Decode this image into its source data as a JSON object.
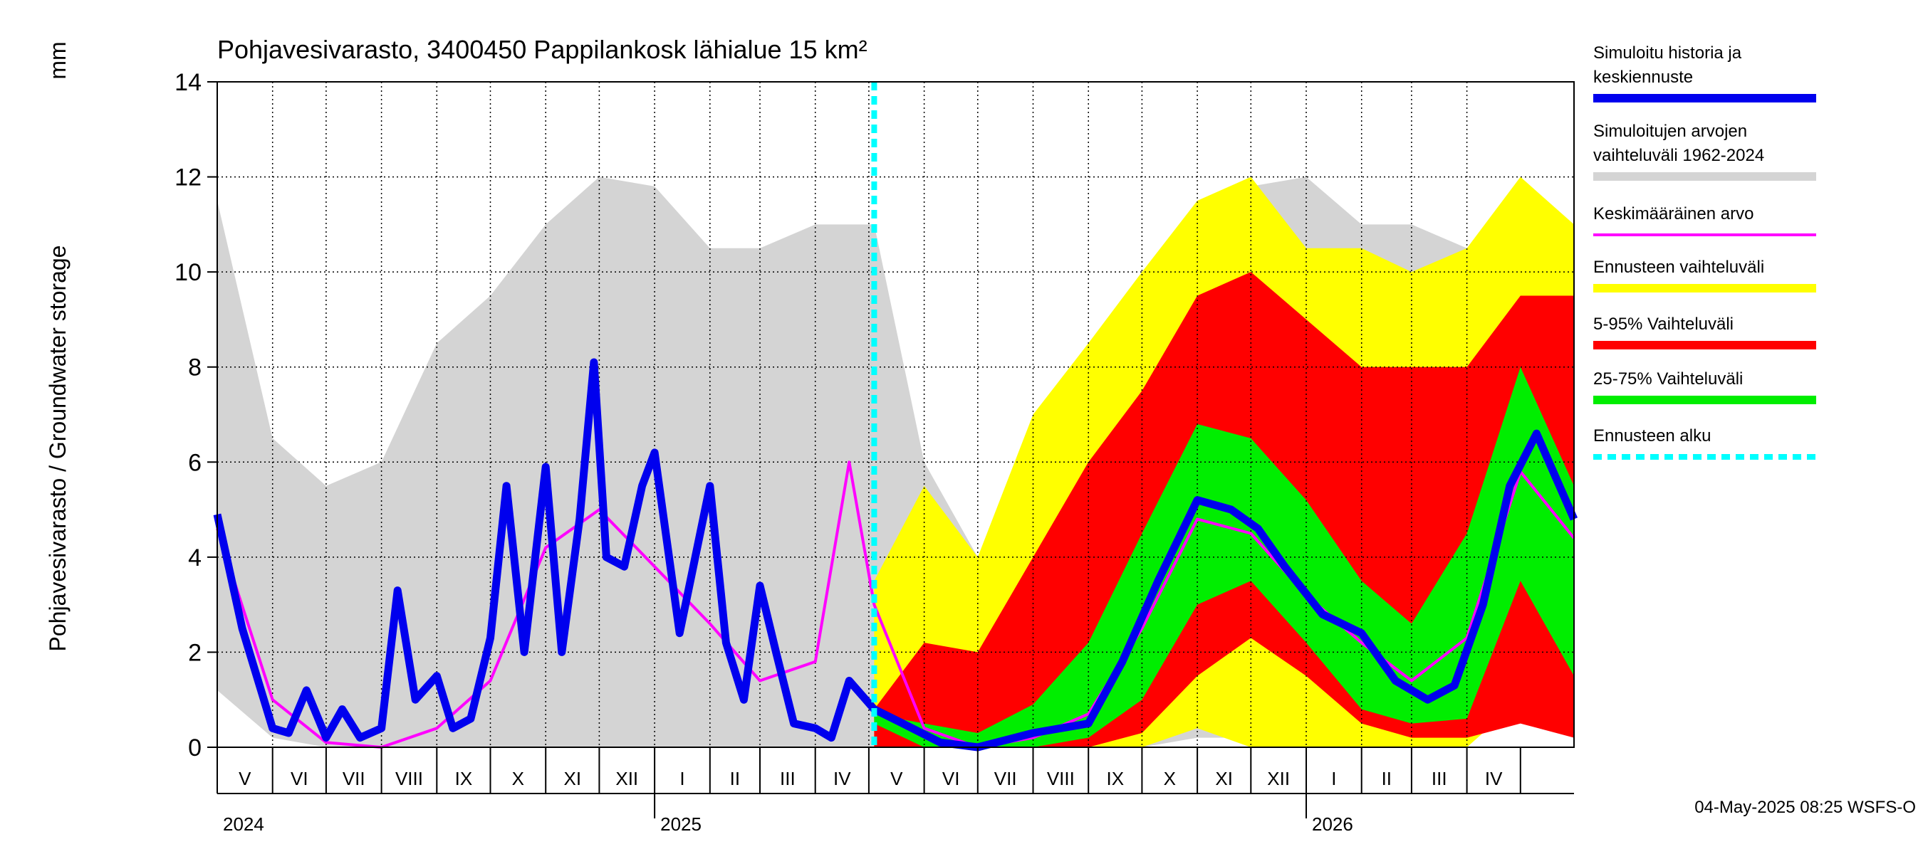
{
  "chart_data": {
    "type": "area",
    "title": "Pohjavesivarasto, 3400450 Pappilankosk lähialue 15 km²",
    "ylabel": "Pohjavesivarasto / Groundwater storage",
    "yunit": "mm",
    "ylim": [
      0,
      14
    ],
    "yticks": [
      0,
      2,
      4,
      6,
      8,
      10,
      12,
      14
    ],
    "xlim": [
      "2024-05-01",
      "2026-05-31"
    ],
    "forecast_start": "2025-05-04",
    "months": [
      "V",
      "VI",
      "VII",
      "VIII",
      "IX",
      "X",
      "XI",
      "XII",
      "I",
      "II",
      "III",
      "IV",
      "V",
      "VI",
      "VII",
      "VIII",
      "IX",
      "X",
      "XI",
      "XII",
      "I",
      "II",
      "III",
      "IV"
    ],
    "years": [
      "2024",
      "2025",
      "2026"
    ],
    "grid": true,
    "legend_position": "right",
    "colors": {
      "history": "#0000ee",
      "range": "#d4d4d4",
      "mean": "#ff00ff",
      "forecast_range": "#ffff00",
      "p5_95": "#ff0000",
      "p25_75": "#00ee00",
      "forecast_start": "#00ffff"
    },
    "series": [
      {
        "name": "Simuloitu historia ja keskiennuste",
        "key": "history",
        "x": [
          "2024-05-01",
          "2024-05-15",
          "2024-06-01",
          "2024-06-10",
          "2024-06-20",
          "2024-07-01",
          "2024-07-10",
          "2024-07-20",
          "2024-08-01",
          "2024-08-10",
          "2024-08-20",
          "2024-09-01",
          "2024-09-10",
          "2024-09-20",
          "2024-10-01",
          "2024-10-10",
          "2024-10-20",
          "2024-11-01",
          "2024-11-10",
          "2024-11-20",
          "2024-11-28",
          "2024-12-05",
          "2024-12-15",
          "2024-12-25",
          "2025-01-01",
          "2025-01-15",
          "2025-02-01",
          "2025-02-10",
          "2025-02-20",
          "2025-03-01",
          "2025-03-10",
          "2025-03-20",
          "2025-04-01",
          "2025-04-10",
          "2025-04-20",
          "2025-05-04",
          "2025-05-20",
          "2025-06-10",
          "2025-07-01",
          "2025-08-01",
          "2025-09-01",
          "2025-09-20",
          "2025-10-10",
          "2025-11-01",
          "2025-11-20",
          "2025-12-05",
          "2025-12-20",
          "2026-01-10",
          "2026-02-01",
          "2026-02-20",
          "2026-03-10",
          "2026-03-25",
          "2026-04-10",
          "2026-04-25",
          "2026-05-10",
          "2026-05-31"
        ],
        "values": [
          4.9,
          2.5,
          0.4,
          0.3,
          1.2,
          0.2,
          0.8,
          0.2,
          0.4,
          3.3,
          1.0,
          1.5,
          0.4,
          0.6,
          2.3,
          5.5,
          2.0,
          5.9,
          2.0,
          4.8,
          8.1,
          4.0,
          3.8,
          5.5,
          6.2,
          2.4,
          5.5,
          2.2,
          1.0,
          3.4,
          2.0,
          0.5,
          0.4,
          0.2,
          1.4,
          0.8,
          0.5,
          0.1,
          0.0,
          0.3,
          0.5,
          1.8,
          3.5,
          5.2,
          5.0,
          4.6,
          3.8,
          2.8,
          2.4,
          1.4,
          1.0,
          1.3,
          3.0,
          5.5,
          6.6,
          4.8
        ]
      },
      {
        "name": "Simuloitujen arvojen vaihteluväli 1962-2024",
        "key": "range",
        "x": [
          "2024-05-01",
          "2024-06-01",
          "2024-07-01",
          "2024-08-01",
          "2024-09-01",
          "2024-10-01",
          "2024-11-01",
          "2024-12-01",
          "2025-01-01",
          "2025-02-01",
          "2025-03-01",
          "2025-04-01",
          "2025-05-04",
          "2025-06-01",
          "2025-07-01",
          "2025-08-01",
          "2025-09-01",
          "2025-10-01",
          "2025-11-01",
          "2025-12-01",
          "2026-01-01",
          "2026-02-01",
          "2026-03-01",
          "2026-04-01",
          "2026-05-01",
          "2026-05-31"
        ],
        "upper": [
          11.5,
          6.5,
          5.5,
          6.0,
          8.5,
          9.5,
          11.0,
          12.0,
          11.8,
          10.5,
          10.5,
          11.0,
          11.0,
          6.0,
          4.0,
          6.0,
          7.5,
          9.0,
          10.5,
          11.8,
          12.0,
          11.0,
          11.0,
          10.5,
          11.2,
          11.0
        ],
        "lower": [
          1.2,
          0.2,
          0.0,
          0.0,
          0.0,
          0.0,
          0.0,
          0.0,
          0.0,
          0.0,
          0.0,
          0.0,
          0.0,
          0.0,
          0.0,
          0.0,
          0.0,
          0.0,
          0.2,
          0.2,
          0.2,
          0.1,
          0.1,
          0.1,
          1.0,
          1.5
        ]
      },
      {
        "name": "Keskimääräinen arvo",
        "key": "mean",
        "x": [
          "2024-05-01",
          "2024-06-01",
          "2024-07-01",
          "2024-08-01",
          "2024-09-01",
          "2024-10-01",
          "2024-11-01",
          "2024-12-01",
          "2025-01-01",
          "2025-02-01",
          "2025-03-01",
          "2025-04-01",
          "2025-04-20",
          "2025-05-04",
          "2025-06-01",
          "2025-07-01",
          "2025-08-01",
          "2025-09-01",
          "2025-10-01",
          "2025-11-01",
          "2025-12-01",
          "2026-01-01",
          "2026-02-01",
          "2026-03-01",
          "2026-04-01",
          "2026-05-01",
          "2026-05-31"
        ],
        "values": [
          4.6,
          1.0,
          0.1,
          0.0,
          0.4,
          1.4,
          4.2,
          5.0,
          3.8,
          2.6,
          1.4,
          1.8,
          6.0,
          3.0,
          0.4,
          0.0,
          0.2,
          0.7,
          2.5,
          4.8,
          4.5,
          3.2,
          2.2,
          1.4,
          2.3,
          5.8,
          4.4
        ]
      },
      {
        "name": "Ennusteen vaihteluväli",
        "key": "forecast_range",
        "x": [
          "2025-05-04",
          "2025-06-01",
          "2025-07-01",
          "2025-08-01",
          "2025-09-01",
          "2025-10-01",
          "2025-11-01",
          "2025-12-01",
          "2026-01-01",
          "2026-02-01",
          "2026-03-01",
          "2026-04-01",
          "2026-05-01",
          "2026-05-31"
        ],
        "upper": [
          3.5,
          5.5,
          4.0,
          7.0,
          8.5,
          10.0,
          11.5,
          12.0,
          10.5,
          10.5,
          10.0,
          10.5,
          12.0,
          11.0
        ],
        "lower": [
          0.0,
          0.0,
          0.0,
          0.0,
          0.0,
          0.0,
          0.4,
          0.0,
          0.0,
          0.0,
          0.0,
          0.0,
          1.0,
          0.5
        ]
      },
      {
        "name": "5-95% Vaihteluväli",
        "key": "p5_95",
        "x": [
          "2025-05-04",
          "2025-06-01",
          "2025-07-01",
          "2025-08-01",
          "2025-09-01",
          "2025-10-01",
          "2025-11-01",
          "2025-12-01",
          "2026-01-01",
          "2026-02-01",
          "2026-03-01",
          "2026-04-01",
          "2026-05-01",
          "2026-05-31"
        ],
        "upper": [
          0.8,
          2.2,
          2.0,
          4.0,
          6.0,
          7.5,
          9.5,
          10.0,
          9.0,
          8.0,
          8.0,
          8.0,
          9.5,
          9.5
        ],
        "lower": [
          0.0,
          0.0,
          0.0,
          0.0,
          0.0,
          0.3,
          1.5,
          2.3,
          1.5,
          0.5,
          0.2,
          0.2,
          0.5,
          0.2
        ]
      },
      {
        "name": "25-75% Vaihteluväli",
        "key": "p25_75",
        "x": [
          "2025-05-04",
          "2025-06-01",
          "2025-07-01",
          "2025-08-01",
          "2025-09-01",
          "2025-10-01",
          "2025-11-01",
          "2025-12-01",
          "2026-01-01",
          "2026-02-01",
          "2026-03-01",
          "2026-04-01",
          "2026-05-01",
          "2026-05-31"
        ],
        "upper": [
          0.7,
          0.5,
          0.3,
          0.9,
          2.2,
          4.5,
          6.8,
          6.5,
          5.2,
          3.5,
          2.6,
          4.5,
          8.0,
          5.5
        ],
        "lower": [
          0.5,
          0.0,
          0.0,
          0.0,
          0.2,
          1.0,
          3.0,
          3.5,
          2.2,
          0.8,
          0.5,
          0.6,
          3.5,
          1.5
        ]
      },
      {
        "name": "Ennusteen alku",
        "key": "forecast_start"
      }
    ],
    "footer": "04-May-2025 08:25 WSFS-O"
  }
}
